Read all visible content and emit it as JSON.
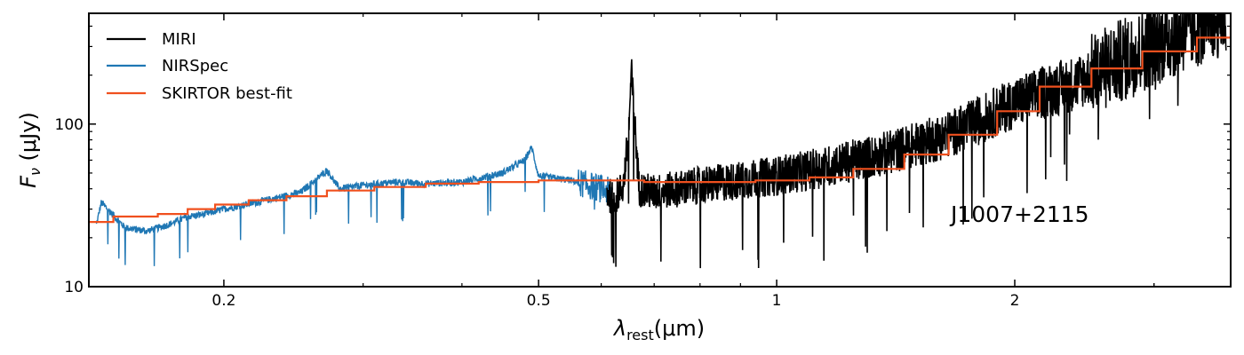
{
  "chart_data": {
    "type": "line",
    "title": "",
    "xlabel": "λrest(μm)",
    "ylabel": "Fν (μJy)",
    "xscale": "log",
    "yscale": "log",
    "xlim": [
      0.135,
      3.75
    ],
    "ylim": [
      10,
      480
    ],
    "xticks": [
      {
        "value": 0.2,
        "label": "0.2"
      },
      {
        "value": 0.5,
        "label": "0.5"
      },
      {
        "value": 1,
        "label": "1"
      },
      {
        "value": 2,
        "label": "2"
      }
    ],
    "yticks": [
      {
        "value": 10,
        "label": "10"
      },
      {
        "value": 100,
        "label": "100"
      }
    ],
    "legend_position": "top-left",
    "annotation": "J1007+2115",
    "series": [
      {
        "name": "MIRI",
        "color": "#000000",
        "x": [
          0.61,
          0.62,
          0.63,
          0.64,
          0.65,
          0.655,
          0.66,
          0.67,
          0.7,
          0.75,
          0.8,
          0.9,
          1.0,
          1.1,
          1.2,
          1.3,
          1.4,
          1.5,
          1.6,
          1.7,
          1.8,
          1.9,
          2.0,
          2.2,
          2.4,
          2.6,
          2.8,
          3.0,
          3.3,
          3.6,
          3.7
        ],
        "y": [
          38,
          35,
          37,
          42,
          90,
          210,
          120,
          40,
          38,
          40,
          42,
          45,
          48,
          52,
          57,
          62,
          68,
          75,
          82,
          92,
          105,
          120,
          135,
          160,
          180,
          220,
          260,
          310,
          380,
          450,
          480
        ]
      },
      {
        "name": "NIRSpec",
        "color": "#1f77b4",
        "x": [
          0.138,
          0.14,
          0.15,
          0.16,
          0.17,
          0.18,
          0.19,
          0.2,
          0.22,
          0.25,
          0.27,
          0.28,
          0.3,
          0.33,
          0.36,
          0.4,
          0.45,
          0.48,
          0.49,
          0.5,
          0.55,
          0.6,
          0.62
        ],
        "y": [
          24,
          33,
          23,
          22,
          24,
          27,
          28,
          30,
          33,
          38,
          52,
          40,
          42,
          44,
          43,
          44,
          50,
          60,
          72,
          48,
          45,
          40,
          38
        ]
      },
      {
        "name": "SKIRTOR best-fit",
        "color": "#f0501e",
        "x": [
          0.135,
          0.145,
          0.165,
          0.18,
          0.195,
          0.215,
          0.24,
          0.27,
          0.31,
          0.36,
          0.42,
          0.5,
          0.58,
          0.68,
          0.8,
          0.94,
          1.1,
          1.25,
          1.45,
          1.65,
          1.9,
          2.15,
          2.5,
          2.9,
          3.4,
          3.75
        ],
        "y": [
          25,
          27,
          28,
          30,
          32,
          34,
          36,
          39,
          41,
          43,
          44,
          45,
          45,
          44,
          44,
          45,
          47,
          53,
          65,
          86,
          120,
          170,
          220,
          280,
          340,
          400
        ]
      }
    ]
  }
}
